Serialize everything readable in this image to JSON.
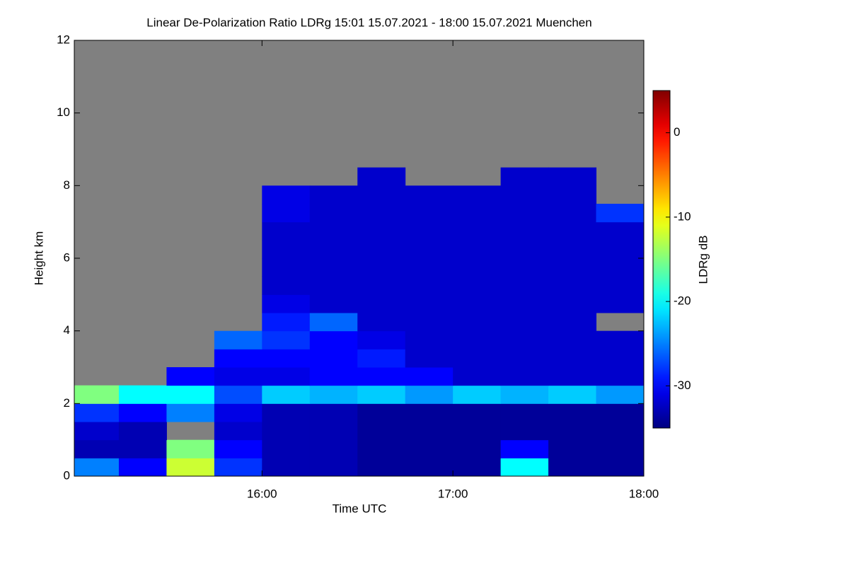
{
  "chart_data": {
    "type": "heatmap",
    "title": "Linear De-Polarization Ratio LDRg   15:01 15.07.2021 - 18:00 15.07.2021 Muenchen",
    "x_label": "Time UTC",
    "y_label": "Height km",
    "colorbar_label": "LDRg dB",
    "colormap": "jet",
    "missing_color": "#808080",
    "xlim": [
      15.0167,
      18
    ],
    "xticks": [
      {
        "value": 16,
        "label": "16:00"
      },
      {
        "value": 17,
        "label": "17:00"
      },
      {
        "value": 18,
        "label": "18:00"
      }
    ],
    "ylim": [
      0,
      12
    ],
    "yticks": [
      0,
      2,
      4,
      6,
      8,
      10,
      12
    ],
    "clim": [
      -35,
      5
    ],
    "cticks": [
      0,
      -10,
      -20,
      -30
    ],
    "xbins": [
      15,
      15.25,
      15.5,
      15.75,
      16,
      16.25,
      16.5,
      16.75,
      17,
      17.25,
      17.5,
      17.75,
      18
    ],
    "ybins": [
      0,
      0.5,
      1,
      1.5,
      2,
      2.5,
      3,
      3.5,
      4,
      4.5,
      5,
      5.5,
      6,
      6.5,
      7,
      7.5,
      8,
      8.5,
      9,
      9.5,
      10,
      10.5,
      11,
      11.5,
      12
    ],
    "z": [
      [
        -25,
        -30,
        -12,
        -28,
        -33,
        -33,
        -34,
        -34,
        -34,
        -20,
        -34,
        -34
      ],
      [
        -33,
        -33,
        -15,
        -30,
        -33,
        -33,
        -34,
        -34,
        -34,
        -30,
        -34,
        -34
      ],
      [
        -32,
        -33,
        null,
        -32,
        -33,
        -33,
        -34,
        -34,
        -34,
        -34,
        -34,
        -34
      ],
      [
        -28,
        -30,
        -25,
        -31,
        -33,
        -33,
        -34,
        -34,
        -34,
        -34,
        -34,
        -34
      ],
      [
        -15,
        -20,
        -20,
        -27,
        -22,
        -23,
        -22,
        -24,
        -22,
        -23,
        -22,
        -24
      ],
      [
        null,
        null,
        -30,
        -31,
        -31,
        -30,
        -30,
        -30,
        -32,
        -32,
        -32,
        -32
      ],
      [
        null,
        null,
        null,
        -30,
        -30,
        -30,
        -29,
        -32,
        -32,
        -32,
        -32,
        -32
      ],
      [
        null,
        null,
        null,
        -26,
        -28,
        -30,
        -31,
        -32,
        -32,
        -32,
        -32,
        -32
      ],
      [
        null,
        null,
        null,
        null,
        -29,
        -26,
        -32,
        -32,
        -32,
        -32,
        -32,
        null
      ],
      [
        null,
        null,
        null,
        null,
        -31,
        -32,
        -32,
        -32,
        -32,
        -32,
        -32,
        -32
      ],
      [
        null,
        null,
        null,
        null,
        -32,
        -32,
        -32,
        -32,
        -32,
        -32,
        -32,
        -32
      ],
      [
        null,
        null,
        null,
        null,
        -32,
        -32,
        -32,
        -32,
        -32,
        -32,
        -32,
        -32
      ],
      [
        null,
        null,
        null,
        null,
        -32,
        -32,
        -32,
        -32,
        -32,
        -32,
        -32,
        -32
      ],
      [
        null,
        null,
        null,
        null,
        -32,
        -32,
        -32,
        -32,
        -32,
        -32,
        -32,
        -32
      ],
      [
        null,
        null,
        null,
        null,
        -31,
        -32,
        -32,
        -32,
        -32,
        -32,
        -32,
        -28
      ],
      [
        null,
        null,
        null,
        null,
        -31,
        -32,
        -32,
        -32,
        -32,
        -32,
        -32,
        null
      ],
      [
        null,
        null,
        null,
        null,
        null,
        null,
        -32,
        null,
        null,
        -32,
        -32,
        null
      ],
      [
        null,
        null,
        null,
        null,
        null,
        null,
        null,
        null,
        null,
        null,
        null,
        null
      ],
      [
        null,
        null,
        null,
        null,
        null,
        null,
        null,
        null,
        null,
        null,
        null,
        null
      ],
      [
        null,
        null,
        null,
        null,
        null,
        null,
        null,
        null,
        null,
        null,
        null,
        null
      ],
      [
        null,
        null,
        null,
        null,
        null,
        null,
        null,
        null,
        null,
        null,
        null,
        null
      ],
      [
        null,
        null,
        null,
        null,
        null,
        null,
        null,
        null,
        null,
        null,
        null,
        null
      ],
      [
        null,
        null,
        null,
        null,
        null,
        null,
        null,
        null,
        null,
        null,
        null,
        null
      ],
      [
        null,
        null,
        null,
        null,
        null,
        null,
        null,
        null,
        null,
        null,
        null,
        null
      ]
    ]
  }
}
